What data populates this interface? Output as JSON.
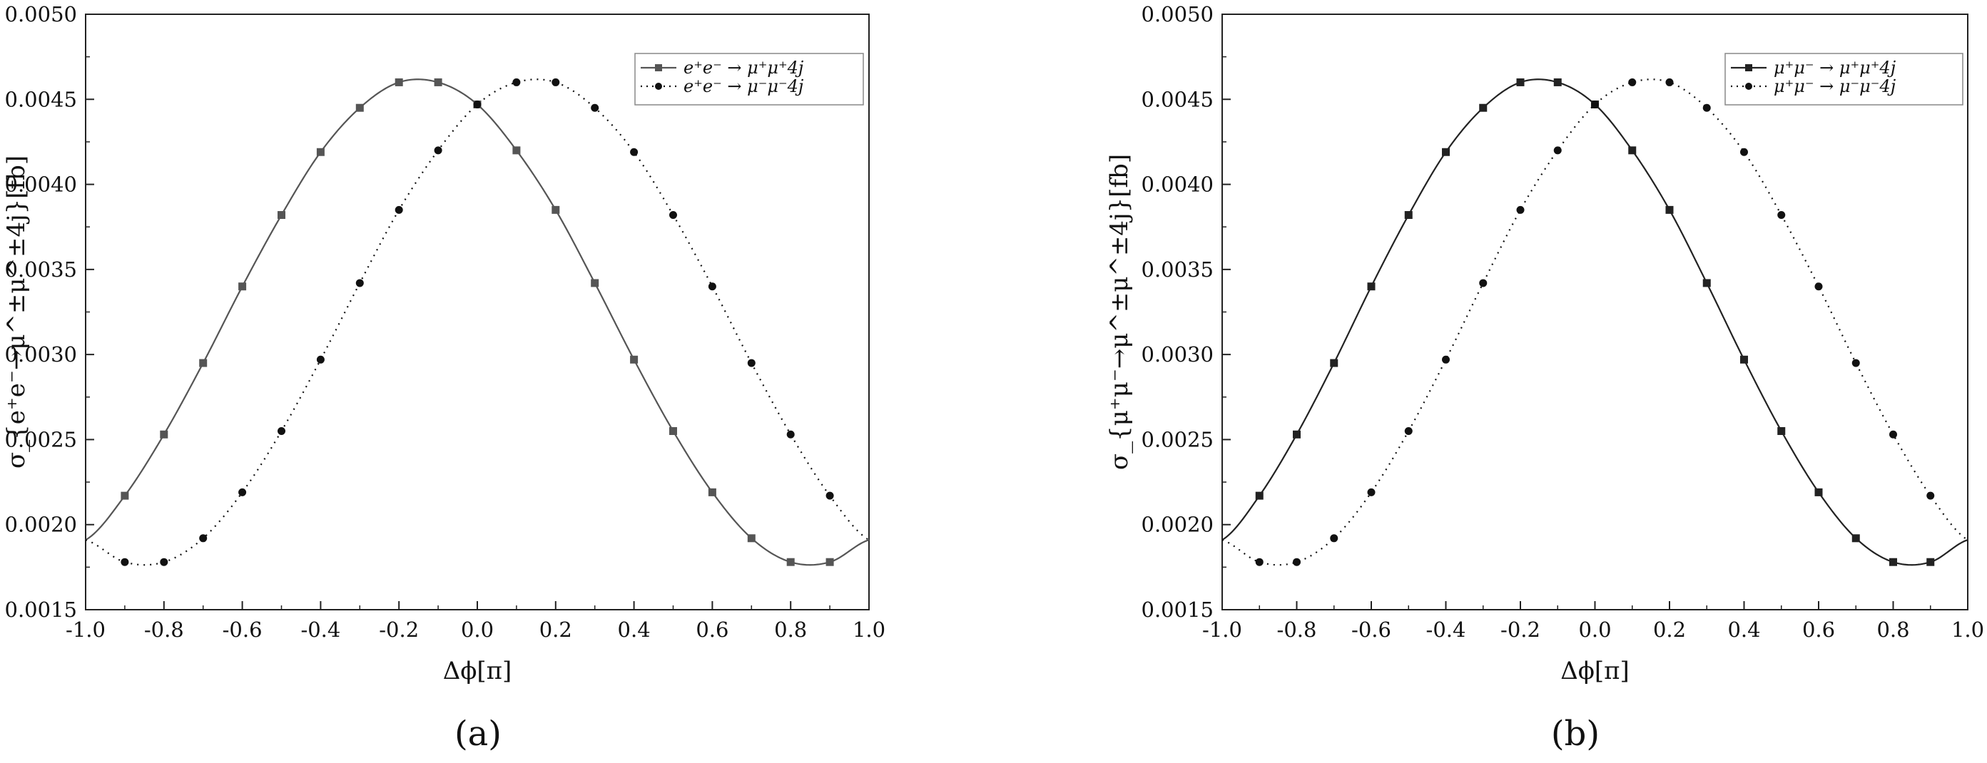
{
  "chart_data": [
    {
      "type": "line",
      "caption": "(a)",
      "xlabel": "Δϕ[π]",
      "ylabel": "σ_{e⁺e⁻→μ^±μ^±4j}[fb]",
      "xlim": [
        -1.0,
        1.0
      ],
      "ylim": [
        0.0015,
        0.005
      ],
      "xticks": [
        "-1.0",
        "-0.8",
        "-0.6",
        "-0.4",
        "-0.2",
        "0.0",
        "0.2",
        "0.4",
        "0.6",
        "0.8",
        "1.0"
      ],
      "yticks": [
        "0.0015",
        "0.0020",
        "0.0025",
        "0.0030",
        "0.0035",
        "0.0040",
        "0.0045",
        "0.0050"
      ],
      "legend_position": "top-right",
      "series": [
        {
          "name": "e⁺e⁻ → μ⁺μ⁺4j",
          "color": "#555555",
          "line_style": "solid",
          "marker": "square",
          "x": [
            -1.0,
            -0.9,
            -0.8,
            -0.7,
            -0.6,
            -0.5,
            -0.4,
            -0.3,
            -0.2,
            -0.1,
            0.0,
            0.1,
            0.2,
            0.3,
            0.4,
            0.5,
            0.6,
            0.7,
            0.8,
            0.9,
            1.0
          ],
          "y": [
            0.00191,
            0.00217,
            0.00253,
            0.00295,
            0.0034,
            0.00382,
            0.00419,
            0.00445,
            0.0046,
            0.0046,
            0.00447,
            0.0042,
            0.00385,
            0.00342,
            0.00297,
            0.00255,
            0.00219,
            0.00192,
            0.00178,
            0.00178,
            0.00191
          ]
        },
        {
          "name": "e⁺e⁻ → μ⁻μ⁻4j",
          "color": "#111111",
          "line_style": "dotted",
          "marker": "circle",
          "x": [
            -1.0,
            -0.9,
            -0.8,
            -0.7,
            -0.6,
            -0.5,
            -0.4,
            -0.3,
            -0.2,
            -0.1,
            0.0,
            0.1,
            0.2,
            0.3,
            0.4,
            0.5,
            0.6,
            0.7,
            0.8,
            0.9,
            1.0
          ],
          "y": [
            0.00191,
            0.00178,
            0.00178,
            0.00192,
            0.00219,
            0.00255,
            0.00297,
            0.00342,
            0.00385,
            0.0042,
            0.00447,
            0.0046,
            0.0046,
            0.00445,
            0.00419,
            0.00382,
            0.0034,
            0.00295,
            0.00253,
            0.00217,
            0.00191
          ]
        }
      ]
    },
    {
      "type": "line",
      "caption": "(b)",
      "xlabel": "Δϕ[π]",
      "ylabel": "σ_{μ⁺μ⁻→μ^±μ^±4j}[fb]",
      "xlim": [
        -1.0,
        1.0
      ],
      "ylim": [
        0.0015,
        0.005
      ],
      "xticks": [
        "-1.0",
        "-0.8",
        "-0.6",
        "-0.4",
        "-0.2",
        "0.0",
        "0.2",
        "0.4",
        "0.6",
        "0.8",
        "1.0"
      ],
      "yticks": [
        "0.0015",
        "0.0020",
        "0.0025",
        "0.0030",
        "0.0035",
        "0.0040",
        "0.0045",
        "0.0050"
      ],
      "legend_position": "top-right",
      "series": [
        {
          "name": "μ⁺μ⁻ → μ⁺μ⁺4j",
          "color": "#222222",
          "line_style": "solid",
          "marker": "square",
          "x": [
            -1.0,
            -0.9,
            -0.8,
            -0.7,
            -0.6,
            -0.5,
            -0.4,
            -0.3,
            -0.2,
            -0.1,
            0.0,
            0.1,
            0.2,
            0.3,
            0.4,
            0.5,
            0.6,
            0.7,
            0.8,
            0.9,
            1.0
          ],
          "y": [
            0.00191,
            0.00217,
            0.00253,
            0.00295,
            0.0034,
            0.00382,
            0.00419,
            0.00445,
            0.0046,
            0.0046,
            0.00447,
            0.0042,
            0.00385,
            0.00342,
            0.00297,
            0.00255,
            0.00219,
            0.00192,
            0.00178,
            0.00178,
            0.00191
          ]
        },
        {
          "name": "μ⁺μ⁻ → μ⁻μ⁻4j",
          "color": "#111111",
          "line_style": "dotted",
          "marker": "circle",
          "x": [
            -1.0,
            -0.9,
            -0.8,
            -0.7,
            -0.6,
            -0.5,
            -0.4,
            -0.3,
            -0.2,
            -0.1,
            0.0,
            0.1,
            0.2,
            0.3,
            0.4,
            0.5,
            0.6,
            0.7,
            0.8,
            0.9,
            1.0
          ],
          "y": [
            0.00191,
            0.00178,
            0.00178,
            0.00192,
            0.00219,
            0.00255,
            0.00297,
            0.00342,
            0.00385,
            0.0042,
            0.00447,
            0.0046,
            0.0046,
            0.00445,
            0.00419,
            0.00382,
            0.0034,
            0.00295,
            0.00253,
            0.00217,
            0.00191
          ]
        }
      ]
    }
  ]
}
